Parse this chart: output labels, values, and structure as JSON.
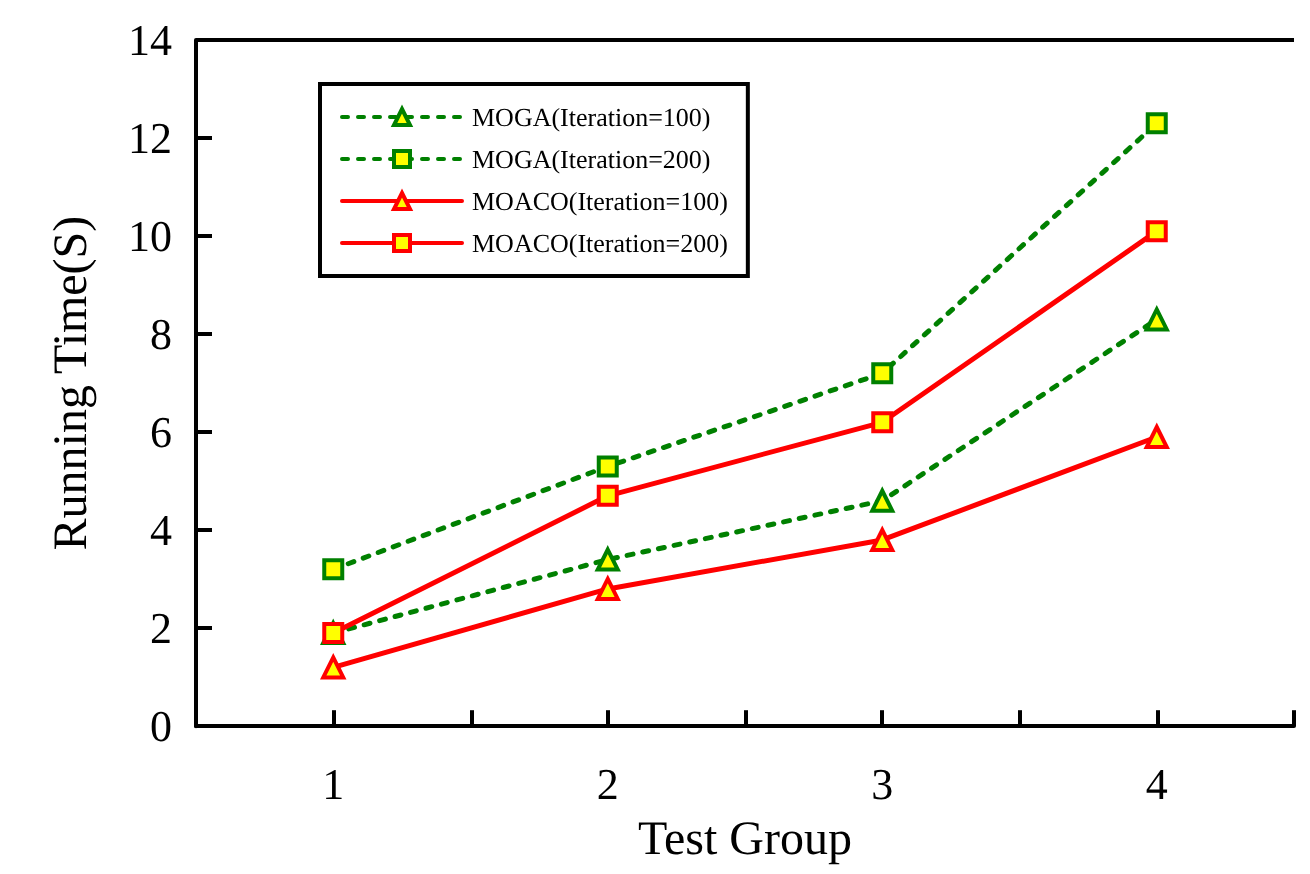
{
  "chart_data": {
    "type": "line",
    "xlabel": "Test Group",
    "ylabel": "Running Time(S)",
    "x": [
      1,
      2,
      3,
      4
    ],
    "series": [
      {
        "name": "MOGA(Iteration=100)",
        "color": "#008000",
        "marker": "triangle",
        "line_style": "dotted",
        "values": [
          1.9,
          3.4,
          4.6,
          8.3
        ]
      },
      {
        "name": "MOGA(Iteration=200)",
        "color": "#008000",
        "marker": "square",
        "line_style": "dotted",
        "values": [
          3.2,
          5.3,
          7.2,
          12.3
        ]
      },
      {
        "name": "MOACO(Iteration=100)",
        "color": "#ff0000",
        "marker": "triangle",
        "line_style": "solid",
        "values": [
          1.2,
          2.8,
          3.8,
          5.9
        ]
      },
      {
        "name": "MOACO(Iteration=200)",
        "color": "#ff0000",
        "marker": "square",
        "line_style": "solid",
        "values": [
          1.9,
          4.7,
          6.2,
          10.1
        ]
      }
    ],
    "xlim": [
      0.5,
      4.5
    ],
    "xticks": [
      {
        "value": 0.5,
        "label": null
      },
      1,
      {
        "value": 1.5,
        "label": null
      },
      2,
      {
        "value": 2.5,
        "label": null
      },
      3,
      {
        "value": 3.5,
        "label": null
      },
      4,
      {
        "value": 4.5,
        "label": null
      }
    ],
    "ylim": [
      0,
      14
    ],
    "yticks": [
      0,
      2,
      4,
      6,
      8,
      10,
      12,
      14
    ],
    "grid": false,
    "legend": "top left"
  }
}
